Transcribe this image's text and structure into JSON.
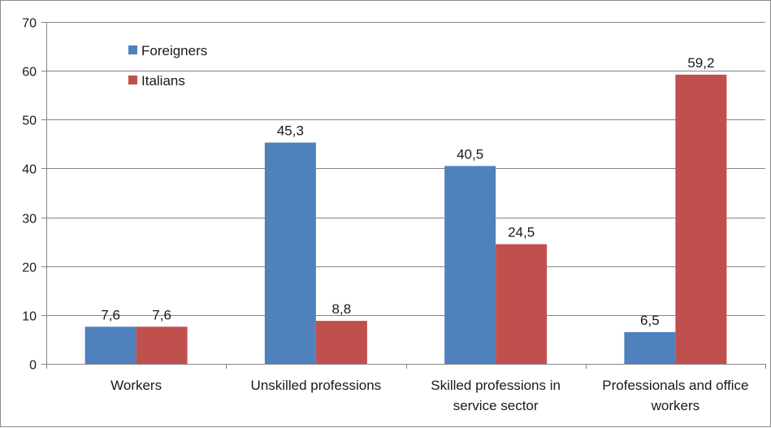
{
  "chart_data": {
    "type": "bar",
    "title": "",
    "xlabel": "",
    "ylabel": "",
    "ylim": [
      0,
      70
    ],
    "yticks": [
      0,
      10,
      20,
      30,
      40,
      50,
      60,
      70
    ],
    "grid": true,
    "legend_position": "top-left",
    "categories": [
      [
        "Workers"
      ],
      [
        "Unskilled professions"
      ],
      [
        "Skilled professions in",
        "service sector"
      ],
      [
        "Professionals and office",
        "workers"
      ]
    ],
    "series": [
      {
        "name": "Foreigners",
        "color": "#4f81bd",
        "values": [
          7.6,
          45.3,
          40.5,
          6.5
        ],
        "labels": [
          "7,6",
          "45,3",
          "40,5",
          "6,5"
        ]
      },
      {
        "name": "Italians",
        "color": "#c0504d",
        "values": [
          7.6,
          8.8,
          24.5,
          59.2
        ],
        "labels": [
          "7,6",
          "8,8",
          "24,5",
          "59,2"
        ]
      }
    ]
  }
}
